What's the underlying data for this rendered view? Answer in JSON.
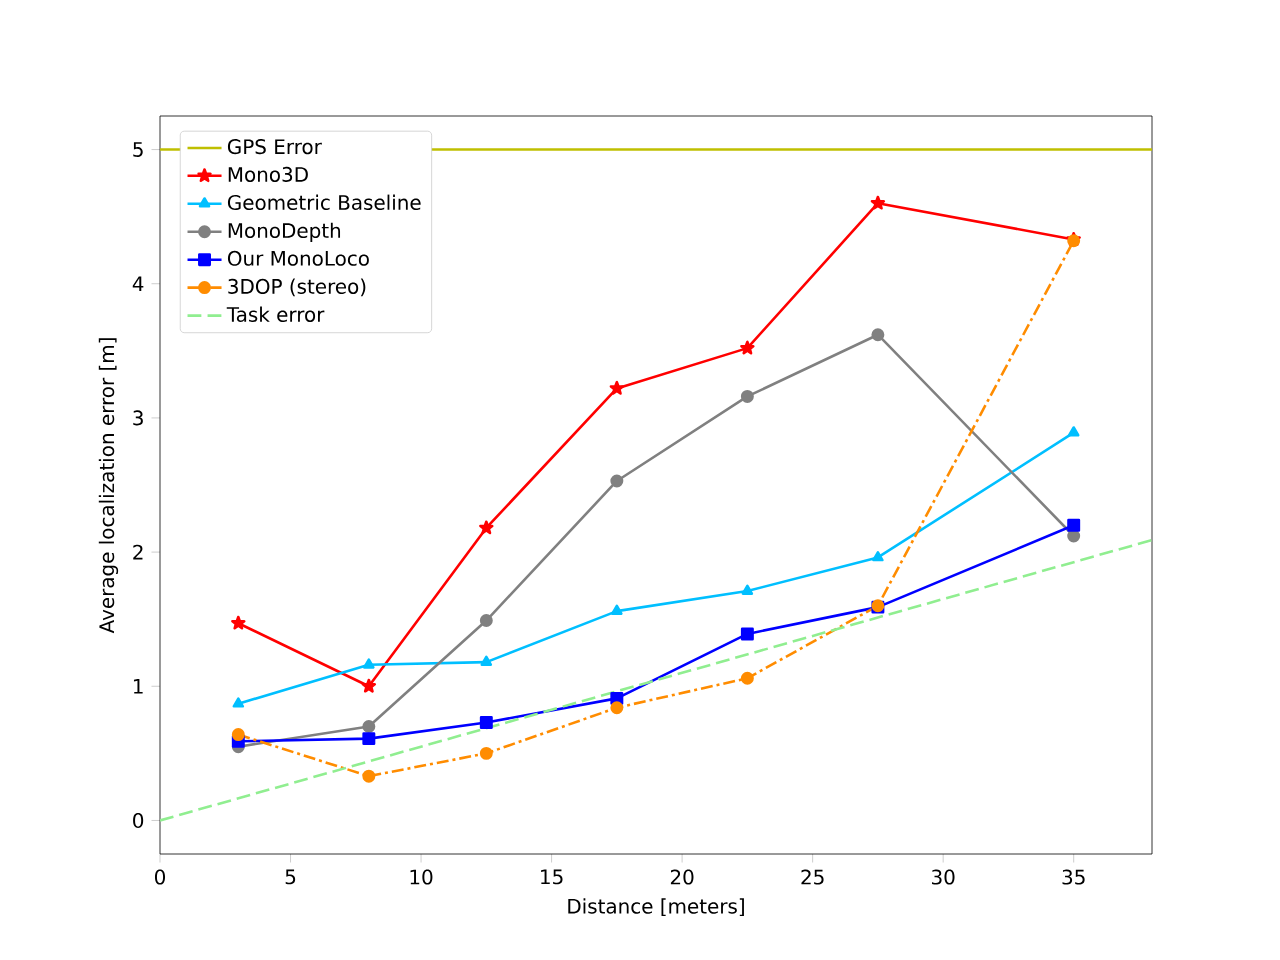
{
  "chart_data": {
    "type": "line",
    "xlabel": "Distance [meters]",
    "ylabel": "Average localization error [m]",
    "xlim": [
      0,
      38
    ],
    "ylim": [
      -0.25,
      5.25
    ],
    "xticks": [
      0,
      5,
      10,
      15,
      20,
      25,
      30,
      35
    ],
    "yticks": [
      0,
      1,
      2,
      3,
      4,
      5
    ],
    "legend": "top left",
    "grid": false,
    "series": [
      {
        "name": "GPS Error",
        "color": "#bfbf00",
        "x": [
          0,
          38
        ],
        "values": [
          5,
          5
        ],
        "marker": "none",
        "line_style": "solid"
      },
      {
        "name": "Mono3D",
        "color": "#ff0000",
        "x": [
          3,
          8,
          12.5,
          17.5,
          22.5,
          27.5,
          35
        ],
        "values": [
          1.47,
          1.0,
          2.18,
          3.22,
          3.52,
          4.6,
          4.33
        ],
        "marker": "star",
        "line_style": "solid"
      },
      {
        "name": "Geometric Baseline",
        "color": "#00bfff",
        "x": [
          3,
          8,
          12.5,
          17.5,
          22.5,
          27.5,
          35
        ],
        "values": [
          0.87,
          1.16,
          1.18,
          1.56,
          1.71,
          1.96,
          2.89
        ],
        "marker": "triangle",
        "line_style": "solid"
      },
      {
        "name": "MonoDepth",
        "color": "#808080",
        "x": [
          3,
          8,
          12.5,
          17.5,
          22.5,
          27.5,
          35
        ],
        "values": [
          0.55,
          0.7,
          1.49,
          2.53,
          3.16,
          3.62,
          2.12
        ],
        "marker": "circle",
        "line_style": "solid"
      },
      {
        "name": "Our MonoLoco",
        "color": "#0000ff",
        "x": [
          3,
          8,
          12.5,
          17.5,
          22.5,
          27.5,
          35
        ],
        "values": [
          0.59,
          0.61,
          0.73,
          0.91,
          1.39,
          1.59,
          2.2
        ],
        "marker": "square",
        "line_style": "solid"
      },
      {
        "name": "3DOP (stereo)",
        "color": "#ff8c00",
        "x": [
          3,
          8,
          12.5,
          17.5,
          22.5,
          27.5,
          35
        ],
        "values": [
          0.64,
          0.33,
          0.5,
          0.84,
          1.06,
          1.6,
          4.32
        ],
        "marker": "circle",
        "line_style": "dashdot"
      },
      {
        "name": "Task error",
        "color": "#90ee90",
        "x": [
          0,
          38
        ],
        "values": [
          0,
          2.09
        ],
        "marker": "none",
        "line_style": "dashed"
      }
    ]
  }
}
